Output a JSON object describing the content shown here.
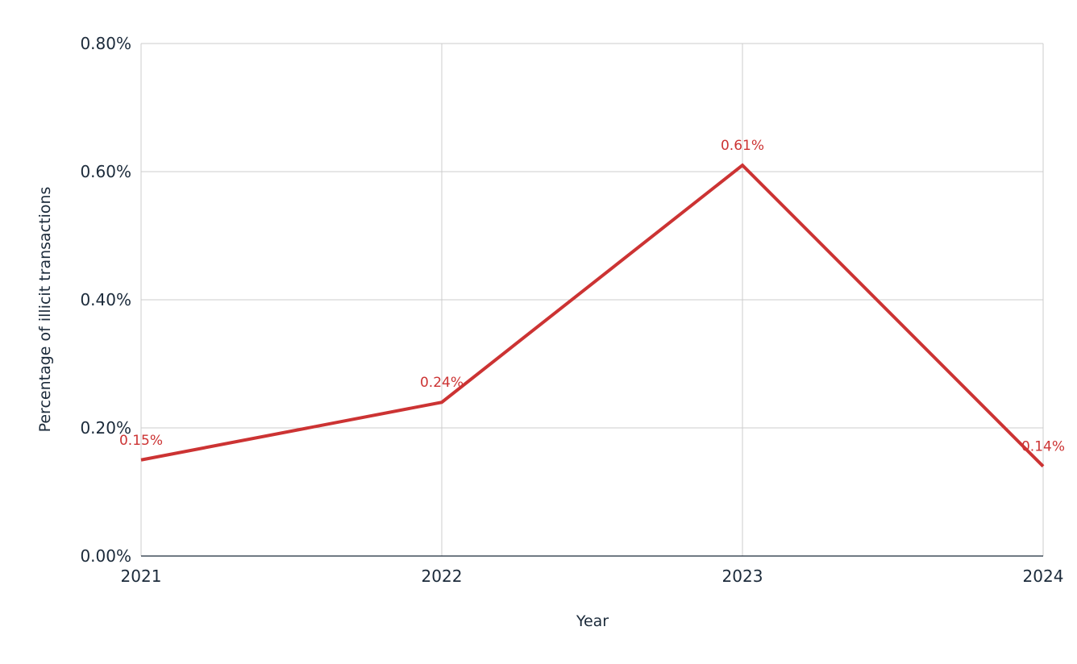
{
  "chart_data": {
    "type": "line",
    "x": [
      "2021",
      "2022",
      "2023",
      "2024"
    ],
    "series": [
      {
        "values": [
          0.15,
          0.24,
          0.61,
          0.14
        ],
        "data_labels": [
          "0.15%",
          "0.24%",
          "0.61%",
          "0.14%"
        ],
        "color": "#cc3333"
      }
    ],
    "xlabel": "Year",
    "ylabel": "Percentage of illicit transactions",
    "ylim": [
      0,
      0.8
    ],
    "yticks": [
      0,
      0.2,
      0.4,
      0.6,
      0.8
    ],
    "ytick_labels": [
      "0.00%",
      "0.20%",
      "0.40%",
      "0.60%",
      "0.80%"
    ],
    "grid": true,
    "legend": "none",
    "colors": {
      "line": "#cc3333",
      "grid": "#cccccc",
      "axis": "#1b2a3a",
      "text": "#1b2a3a"
    }
  }
}
